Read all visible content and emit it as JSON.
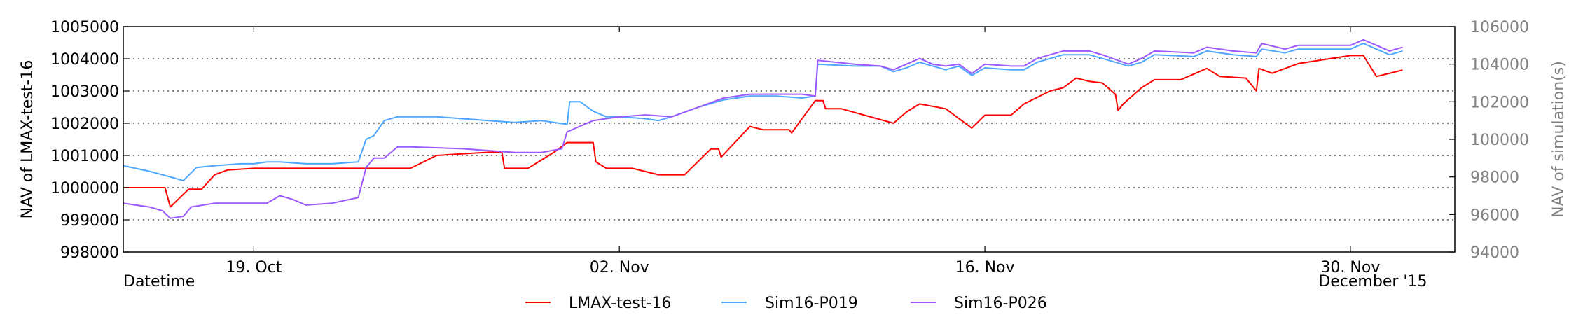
{
  "chart_data": {
    "type": "line",
    "x_start": "2015-10-14",
    "x_end": "2015-12-04",
    "xticks": [
      {
        "date": "2015-10-19",
        "label": "19. Oct"
      },
      {
        "date": "2015-11-02",
        "label": "02. Nov"
      },
      {
        "date": "2015-11-16",
        "label": "16. Nov"
      },
      {
        "date": "2015-11-30",
        "label": "30. Nov"
      }
    ],
    "xlabel": "Datetime",
    "x_corner_label": "December '15",
    "left_axis": {
      "label": "NAV of LMAX-test-16",
      "ylim": [
        998000,
        1005000
      ],
      "ticks": [
        998000,
        999000,
        1000000,
        1001000,
        1002000,
        1003000,
        1004000,
        1005000
      ],
      "color": "#000000"
    },
    "right_axis": {
      "label": "NAV of simulation(s)",
      "ylim": [
        94000,
        106000
      ],
      "ticks": [
        94000,
        96000,
        98000,
        100000,
        102000,
        104000,
        106000
      ],
      "color": "#808080"
    },
    "grid": "horizontal-dotted",
    "legend_position": "bottom-center",
    "series": [
      {
        "name": "LMAX-test-16",
        "axis": "left",
        "color": "#ff0000",
        "points": [
          [
            "2015-10-14",
            1000000
          ],
          [
            "2015-10-15",
            1000000
          ],
          [
            "2015-10-15.6",
            1000000
          ],
          [
            "2015-10-15.8",
            999400
          ],
          [
            "2015-10-16.5",
            999950
          ],
          [
            "2015-10-17",
            999950
          ],
          [
            "2015-10-17.5",
            1000400
          ],
          [
            "2015-10-18",
            1000550
          ],
          [
            "2015-10-19",
            1000600
          ],
          [
            "2015-10-22",
            1000600
          ],
          [
            "2015-10-24",
            1000600
          ],
          [
            "2015-10-25",
            1000600
          ],
          [
            "2015-10-26",
            1001000
          ],
          [
            "2015-10-28",
            1001100
          ],
          [
            "2015-10-28.5",
            1001100
          ],
          [
            "2015-10-28.6",
            1000600
          ],
          [
            "2015-10-29.5",
            1000600
          ],
          [
            "2015-10-30.5",
            1001100
          ],
          [
            "2015-10-31",
            1001400
          ],
          [
            "2015-11-01",
            1001400
          ],
          [
            "2015-11-01.1",
            1000800
          ],
          [
            "2015-11-01.5",
            1000600
          ],
          [
            "2015-11-02.5",
            1000600
          ],
          [
            "2015-11-03.5",
            1000400
          ],
          [
            "2015-11-04.5",
            1000400
          ],
          [
            "2015-11-05",
            1000800
          ],
          [
            "2015-11-05.5",
            1001200
          ],
          [
            "2015-11-05.8",
            1001200
          ],
          [
            "2015-11-05.9",
            1000950
          ],
          [
            "2015-11-07",
            1001900
          ],
          [
            "2015-11-07.5",
            1001800
          ],
          [
            "2015-11-08.5",
            1001800
          ],
          [
            "2015-11-08.6",
            1001700
          ],
          [
            "2015-11-09.5",
            1002700
          ],
          [
            "2015-11-09.8",
            1002700
          ],
          [
            "2015-11-09.9",
            1002450
          ],
          [
            "2015-11-10.5",
            1002450
          ],
          [
            "2015-11-12.5",
            1002000
          ],
          [
            "2015-11-13",
            1002350
          ],
          [
            "2015-11-13.5",
            1002600
          ],
          [
            "2015-11-14.5",
            1002450
          ],
          [
            "2015-11-15.5",
            1001850
          ],
          [
            "2015-11-16",
            1002250
          ],
          [
            "2015-11-16.5",
            1002250
          ],
          [
            "2015-11-17",
            1002250
          ],
          [
            "2015-11-17.5",
            1002600
          ],
          [
            "2015-11-18.5",
            1003000
          ],
          [
            "2015-11-19",
            1003100
          ],
          [
            "2015-11-19.5",
            1003400
          ],
          [
            "2015-11-20",
            1003300
          ],
          [
            "2015-11-20.5",
            1003250
          ],
          [
            "2015-11-21",
            1002900
          ],
          [
            "2015-11-21.1",
            1002400
          ],
          [
            "2015-11-21.3",
            1002600
          ],
          [
            "2015-11-22",
            1003100
          ],
          [
            "2015-11-22.5",
            1003350
          ],
          [
            "2015-11-23.5",
            1003350
          ],
          [
            "2015-11-24.5",
            1003700
          ],
          [
            "2015-11-25",
            1003450
          ],
          [
            "2015-11-26",
            1003400
          ],
          [
            "2015-11-26.4",
            1003000
          ],
          [
            "2015-11-26.5",
            1003700
          ],
          [
            "2015-11-27",
            1003550
          ],
          [
            "2015-11-28",
            1003850
          ],
          [
            "2015-11-30",
            1004100
          ],
          [
            "2015-11-30.5",
            1004100
          ],
          [
            "2015-12-01",
            1003450
          ],
          [
            "2015-12-02",
            1003650
          ]
        ]
      },
      {
        "name": "Sim16-P019",
        "axis": "right",
        "color": "#4da6ff",
        "points": [
          [
            "2015-10-14",
            98600
          ],
          [
            "2015-10-15",
            98300
          ],
          [
            "2015-10-15.8",
            98000
          ],
          [
            "2015-10-16.3",
            97800
          ],
          [
            "2015-10-16.8",
            98500
          ],
          [
            "2015-10-17.5",
            98600
          ],
          [
            "2015-10-18.5",
            98700
          ],
          [
            "2015-10-19",
            98700
          ],
          [
            "2015-10-19.5",
            98800
          ],
          [
            "2015-10-20",
            98800
          ],
          [
            "2015-10-21",
            98700
          ],
          [
            "2015-10-22",
            98700
          ],
          [
            "2015-10-23",
            98800
          ],
          [
            "2015-10-23.3",
            100000
          ],
          [
            "2015-10-23.6",
            100200
          ],
          [
            "2015-10-24",
            101000
          ],
          [
            "2015-10-24.5",
            101200
          ],
          [
            "2015-10-26",
            101200
          ],
          [
            "2015-10-27",
            101100
          ],
          [
            "2015-10-28",
            101000
          ],
          [
            "2015-10-29",
            100900
          ],
          [
            "2015-10-30",
            101000
          ],
          [
            "2015-10-31",
            100800
          ],
          [
            "2015-10-31.1",
            102000
          ],
          [
            "2015-10-31.5",
            102000
          ],
          [
            "2015-11-01",
            101500
          ],
          [
            "2015-11-01.5",
            101200
          ],
          [
            "2015-11-02",
            101200
          ],
          [
            "2015-11-03",
            101100
          ],
          [
            "2015-11-03.5",
            101000
          ],
          [
            "2015-11-04",
            101200
          ],
          [
            "2015-11-05",
            101700
          ],
          [
            "2015-11-06",
            102100
          ],
          [
            "2015-11-07",
            102300
          ],
          [
            "2015-11-08",
            102300
          ],
          [
            "2015-11-09",
            102200
          ],
          [
            "2015-11-09.5",
            102300
          ],
          [
            "2015-11-09.6",
            104000
          ],
          [
            "2015-11-11",
            103900
          ],
          [
            "2015-11-12",
            103900
          ],
          [
            "2015-11-12.5",
            103600
          ],
          [
            "2015-11-13",
            103800
          ],
          [
            "2015-11-13.5",
            104100
          ],
          [
            "2015-11-14",
            103900
          ],
          [
            "2015-11-14.5",
            103700
          ],
          [
            "2015-11-15",
            103900
          ],
          [
            "2015-11-15.5",
            103400
          ],
          [
            "2015-11-16",
            103800
          ],
          [
            "2015-11-17",
            103700
          ],
          [
            "2015-11-17.5",
            103700
          ],
          [
            "2015-11-18",
            104100
          ],
          [
            "2015-11-19",
            104500
          ],
          [
            "2015-11-20",
            104500
          ],
          [
            "2015-11-20.5",
            104300
          ],
          [
            "2015-11-21.5",
            103900
          ],
          [
            "2015-11-22",
            104100
          ],
          [
            "2015-11-22.5",
            104500
          ],
          [
            "2015-11-24",
            104400
          ],
          [
            "2015-11-24.5",
            104700
          ],
          [
            "2015-11-25.5",
            104500
          ],
          [
            "2015-11-26.4",
            104400
          ],
          [
            "2015-11-26.6",
            104800
          ],
          [
            "2015-11-27.5",
            104600
          ],
          [
            "2015-11-28",
            104800
          ],
          [
            "2015-11-30",
            104800
          ],
          [
            "2015-11-30.5",
            105100
          ],
          [
            "2015-12-01",
            104800
          ],
          [
            "2015-12-01.5",
            104500
          ],
          [
            "2015-12-02",
            104700
          ]
        ]
      },
      {
        "name": "Sim16-P026",
        "axis": "right",
        "color": "#9b59ff",
        "points": [
          [
            "2015-10-14",
            96600
          ],
          [
            "2015-10-15",
            96400
          ],
          [
            "2015-10-15.5",
            96200
          ],
          [
            "2015-10-15.8",
            95800
          ],
          [
            "2015-10-16.3",
            95900
          ],
          [
            "2015-10-16.6",
            96400
          ],
          [
            "2015-10-17.5",
            96600
          ],
          [
            "2015-10-18",
            96600
          ],
          [
            "2015-10-19",
            96600
          ],
          [
            "2015-10-19.5",
            96600
          ],
          [
            "2015-10-20",
            97000
          ],
          [
            "2015-10-20.5",
            96800
          ],
          [
            "2015-10-21",
            96500
          ],
          [
            "2015-10-22",
            96600
          ],
          [
            "2015-10-23",
            96900
          ],
          [
            "2015-10-23.3",
            98500
          ],
          [
            "2015-10-23.6",
            99000
          ],
          [
            "2015-10-24",
            99000
          ],
          [
            "2015-10-24.5",
            99600
          ],
          [
            "2015-10-25",
            99600
          ],
          [
            "2015-10-27",
            99500
          ],
          [
            "2015-10-28",
            99400
          ],
          [
            "2015-10-29",
            99300
          ],
          [
            "2015-10-30",
            99300
          ],
          [
            "2015-10-30.8",
            99500
          ],
          [
            "2015-10-31",
            100400
          ],
          [
            "2015-10-31.5",
            100700
          ],
          [
            "2015-11-01",
            101000
          ],
          [
            "2015-11-02",
            101200
          ],
          [
            "2015-11-03",
            101300
          ],
          [
            "2015-11-04",
            101200
          ],
          [
            "2015-11-05",
            101700
          ],
          [
            "2015-11-06",
            102200
          ],
          [
            "2015-11-07",
            102400
          ],
          [
            "2015-11-08",
            102400
          ],
          [
            "2015-11-09",
            102400
          ],
          [
            "2015-11-09.5",
            102300
          ],
          [
            "2015-11-09.6",
            104200
          ],
          [
            "2015-11-11",
            104000
          ],
          [
            "2015-11-12",
            103900
          ],
          [
            "2015-11-12.5",
            103700
          ],
          [
            "2015-11-13",
            104000
          ],
          [
            "2015-11-13.5",
            104300
          ],
          [
            "2015-11-14",
            104000
          ],
          [
            "2015-11-14.5",
            103900
          ],
          [
            "2015-11-15",
            104000
          ],
          [
            "2015-11-15.5",
            103500
          ],
          [
            "2015-11-16",
            104000
          ],
          [
            "2015-11-17",
            103900
          ],
          [
            "2015-11-17.5",
            103900
          ],
          [
            "2015-11-18",
            104300
          ],
          [
            "2015-11-19",
            104700
          ],
          [
            "2015-11-20",
            104700
          ],
          [
            "2015-11-20.5",
            104500
          ],
          [
            "2015-11-21.5",
            104000
          ],
          [
            "2015-11-22",
            104300
          ],
          [
            "2015-11-22.5",
            104700
          ],
          [
            "2015-11-24",
            104600
          ],
          [
            "2015-11-24.5",
            104900
          ],
          [
            "2015-11-25.5",
            104700
          ],
          [
            "2015-11-26.4",
            104600
          ],
          [
            "2015-11-26.6",
            105100
          ],
          [
            "2015-11-27.5",
            104800
          ],
          [
            "2015-11-28",
            105000
          ],
          [
            "2015-11-30",
            105000
          ],
          [
            "2015-11-30.5",
            105300
          ],
          [
            "2015-12-01",
            105000
          ],
          [
            "2015-12-01.5",
            104700
          ],
          [
            "2015-12-02",
            104900
          ]
        ]
      }
    ]
  }
}
